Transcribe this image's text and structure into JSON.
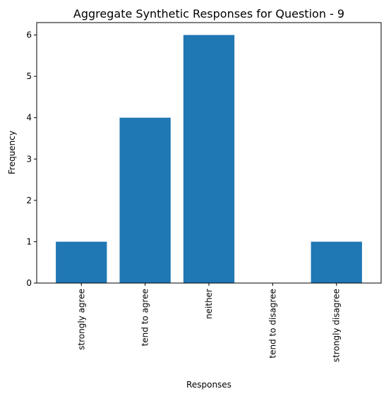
{
  "chart_data": {
    "type": "bar",
    "title": "Aggregate Synthetic Responses for Question - 9",
    "xlabel": "Responses",
    "ylabel": "Frequency",
    "categories": [
      "strongly agree",
      "tend to agree",
      "neither",
      "tend to disagree",
      "strongly disagree"
    ],
    "values": [
      1,
      4,
      6,
      0,
      1
    ],
    "ylim": [
      0,
      6.3
    ],
    "yticks": [
      "0",
      "1",
      "2",
      "3",
      "4",
      "5",
      "6"
    ],
    "bar_color": "#1f77b4",
    "grid": false,
    "legend": "none"
  }
}
